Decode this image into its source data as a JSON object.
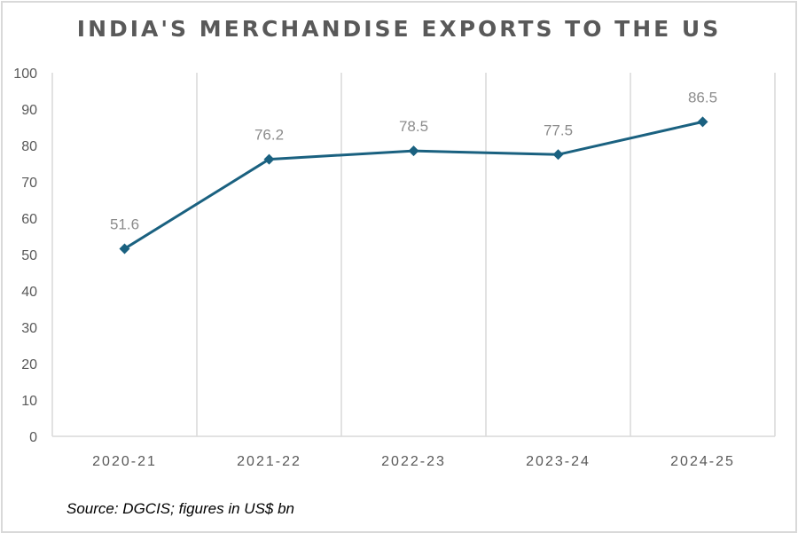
{
  "chart_data": {
    "type": "line",
    "title": "INDIA'S MERCHANDISE EXPORTS TO THE US",
    "categories": [
      "2020-21",
      "2021-22",
      "2022-23",
      "2023-24",
      "2024-25"
    ],
    "series": [
      {
        "values": [
          51.6,
          76.2,
          78.5,
          77.5,
          86.5
        ],
        "color": "#1a6180",
        "marker": "diamond"
      }
    ],
    "data_labels": [
      "51.6",
      "76.2",
      "78.5",
      "77.5",
      "86.5"
    ],
    "ylim": [
      0,
      100
    ],
    "yticks": [
      "0",
      "10",
      "20",
      "30",
      "40",
      "50",
      "60",
      "70",
      "80",
      "90",
      "100"
    ],
    "grid": "vertical category separators",
    "xlabel": "",
    "ylabel": ""
  },
  "source_note": "Source: DGCIS; figures in US$ bn"
}
